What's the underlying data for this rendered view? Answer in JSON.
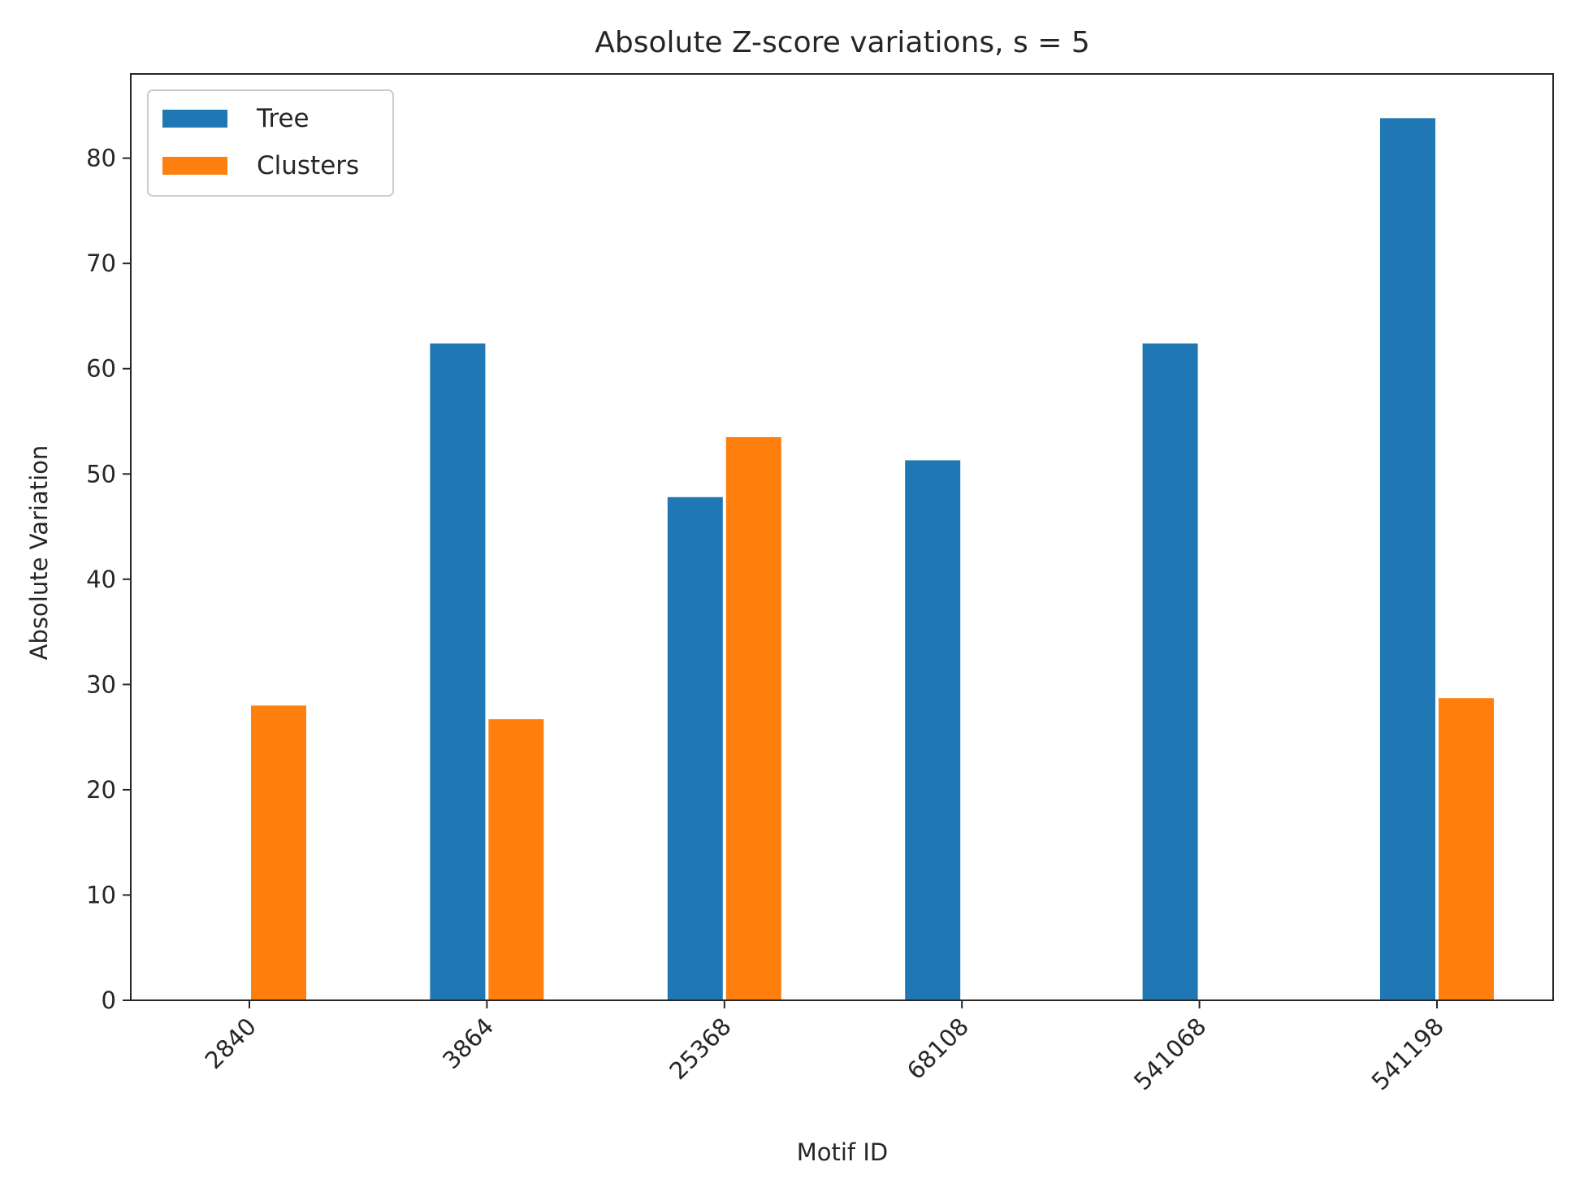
{
  "chart_data": {
    "type": "bar",
    "title": "Absolute Z-score variations, s = 5",
    "xlabel": "Motif ID",
    "ylabel": "Absolute Variation",
    "categories": [
      "2840",
      "3864",
      "25368",
      "68108",
      "541068",
      "541198"
    ],
    "series": [
      {
        "name": "Tree",
        "color": "#1f77b4",
        "values": [
          0,
          62.4,
          47.8,
          51.3,
          62.4,
          83.8
        ]
      },
      {
        "name": "Clusters",
        "color": "#ff7f0e",
        "values": [
          28.0,
          26.7,
          53.5,
          0,
          0,
          28.7
        ]
      }
    ],
    "ylim": [
      0,
      88
    ],
    "yticks": [
      0,
      10,
      20,
      30,
      40,
      50,
      60,
      70,
      80
    ],
    "xtick_rotation": 45,
    "legend": "top-left",
    "grid": false
  }
}
